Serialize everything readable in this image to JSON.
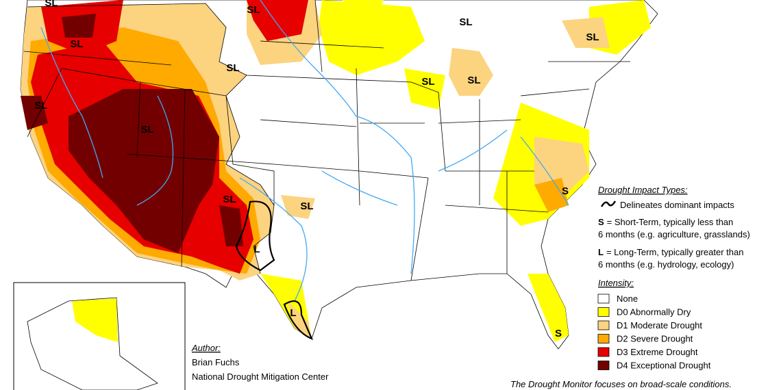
{
  "impact_labels": [
    "SL",
    "SL",
    "SL",
    "SL",
    "SL",
    "SL",
    "SL",
    "SL",
    "SL",
    "SL",
    "S",
    "SL",
    "SL",
    "L",
    "L",
    "S"
  ],
  "legend": {
    "impact_title": "Drought Impact Types:",
    "delineates": "Delineates dominant impacts",
    "short_term": {
      "key": "S",
      "line1": "= Short-Term, typically less than",
      "line2": "6 months (e.g. agriculture, grasslands)"
    },
    "long_term": {
      "key": "L",
      "line1": "= Long-Term, typically greater than",
      "line2": "6 months (e.g. hydrology, ecology)"
    }
  },
  "intensity": {
    "title": "Intensity:",
    "items": [
      {
        "label": "None",
        "color": "#ffffff"
      },
      {
        "label": "D0 Abnormally Dry",
        "color": "#ffff00"
      },
      {
        "label": "D1 Moderate Drought",
        "color": "#fcd37f"
      },
      {
        "label": "D2 Severe Drought",
        "color": "#ffaa00"
      },
      {
        "label": "D3 Extreme Drought",
        "color": "#e60000"
      },
      {
        "label": "D4 Exceptional Drought",
        "color": "#730000"
      }
    ]
  },
  "author": {
    "heading": "Author:",
    "name": "Brian Fuchs",
    "org": "National Drought Mitigation Center"
  },
  "footnote": "The Drought Monitor focuses on broad-scale conditions."
}
